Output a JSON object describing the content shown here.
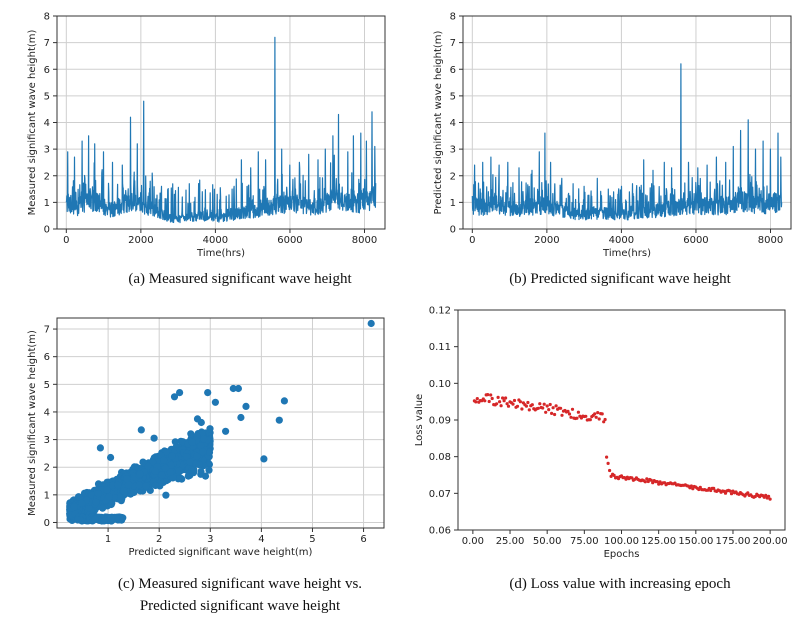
{
  "captions": {
    "a": "(a) Measured significant wave height",
    "b": "(b) Predicted significant wave height",
    "c_line1": "(c) Measured significant wave height vs.",
    "c_line2": "Predicted significant wave height",
    "d": "(d) Loss value with increasing epoch"
  },
  "colors": {
    "series": "#1f77b4",
    "loss": "#d62728",
    "grid": "#cfcfcf",
    "axis": "#333333"
  },
  "chart_data": [
    {
      "id": "a",
      "type": "line",
      "title": "",
      "xlabel": "Time(hrs)",
      "ylabel": "Measured significant wave height(m)",
      "xlim": [
        -250,
        8550
      ],
      "ylim": [
        0,
        8
      ],
      "xticks": [
        0,
        2000,
        4000,
        6000,
        8000
      ],
      "yticks": [
        0,
        1,
        2,
        3,
        4,
        5,
        6,
        7,
        8
      ],
      "grid": true,
      "base": [
        [
          0,
          1.1
        ],
        [
          300,
          0.9
        ],
        [
          600,
          1.3
        ],
        [
          900,
          1.0
        ],
        [
          1200,
          0.8
        ],
        [
          1500,
          1.0
        ],
        [
          1800,
          1.2
        ],
        [
          2100,
          1.0
        ],
        [
          2400,
          0.7
        ],
        [
          2700,
          0.5
        ],
        [
          3000,
          0.4
        ],
        [
          3300,
          0.5
        ],
        [
          3600,
          0.55
        ],
        [
          3900,
          0.5
        ],
        [
          4200,
          0.45
        ],
        [
          4500,
          0.6
        ],
        [
          4800,
          0.7
        ],
        [
          5100,
          0.75
        ],
        [
          5400,
          0.9
        ],
        [
          5700,
          1.0
        ],
        [
          6000,
          1.1
        ],
        [
          6300,
          1.0
        ],
        [
          6600,
          0.9
        ],
        [
          6900,
          1.0
        ],
        [
          7200,
          1.3
        ],
        [
          7500,
          1.1
        ],
        [
          7800,
          1.0
        ],
        [
          8100,
          1.2
        ],
        [
          8300,
          1.4
        ]
      ],
      "spikes": [
        [
          40,
          2.9
        ],
        [
          220,
          2.7
        ],
        [
          420,
          3.3
        ],
        [
          600,
          3.5
        ],
        [
          760,
          3.2
        ],
        [
          1000,
          2.9
        ],
        [
          1240,
          2.5
        ],
        [
          1500,
          2.4
        ],
        [
          1720,
          4.2
        ],
        [
          1900,
          3.2
        ],
        [
          2080,
          4.8
        ],
        [
          2300,
          2.1
        ],
        [
          2550,
          1.6
        ],
        [
          2900,
          1.3
        ],
        [
          3300,
          1.7
        ],
        [
          3650,
          1.4
        ],
        [
          4050,
          1.3
        ],
        [
          4450,
          1.5
        ],
        [
          4700,
          2.6
        ],
        [
          4950,
          2.3
        ],
        [
          5150,
          2.9
        ],
        [
          5350,
          2.6
        ],
        [
          5600,
          7.2
        ],
        [
          5780,
          3.0
        ],
        [
          6000,
          2.4
        ],
        [
          6250,
          2.5
        ],
        [
          6500,
          2.8
        ],
        [
          6750,
          2.6
        ],
        [
          6950,
          3.0
        ],
        [
          7150,
          3.5
        ],
        [
          7300,
          4.3
        ],
        [
          7550,
          2.9
        ],
        [
          7700,
          3.5
        ],
        [
          7900,
          3.6
        ],
        [
          8050,
          3.3
        ],
        [
          8200,
          4.4
        ],
        [
          8280,
          3.1
        ]
      ],
      "n": 1100,
      "jitter": 0.55,
      "seed": 11
    },
    {
      "id": "b",
      "type": "line",
      "title": "",
      "xlabel": "Time(hrs)",
      "ylabel": "Predicted significant wave height(m)",
      "xlim": [
        -250,
        8550
      ],
      "ylim": [
        0,
        8
      ],
      "xticks": [
        0,
        2000,
        4000,
        6000,
        8000
      ],
      "yticks": [
        0,
        1,
        2,
        3,
        4,
        5,
        6,
        7,
        8
      ],
      "grid": true,
      "base": [
        [
          0,
          1.0
        ],
        [
          300,
          0.9
        ],
        [
          600,
          1.1
        ],
        [
          900,
          0.9
        ],
        [
          1200,
          0.8
        ],
        [
          1500,
          0.9
        ],
        [
          1800,
          1.0
        ],
        [
          2100,
          0.9
        ],
        [
          2400,
          0.75
        ],
        [
          2700,
          0.65
        ],
        [
          3000,
          0.6
        ],
        [
          3300,
          0.65
        ],
        [
          3600,
          0.65
        ],
        [
          3900,
          0.6
        ],
        [
          4200,
          0.6
        ],
        [
          4500,
          0.7
        ],
        [
          4800,
          0.75
        ],
        [
          5100,
          0.8
        ],
        [
          5400,
          0.9
        ],
        [
          5700,
          0.95
        ],
        [
          6000,
          1.0
        ],
        [
          6300,
          0.95
        ],
        [
          6600,
          0.9
        ],
        [
          6900,
          1.0
        ],
        [
          7200,
          1.2
        ],
        [
          7500,
          1.05
        ],
        [
          7800,
          1.0
        ],
        [
          8100,
          1.1
        ],
        [
          8300,
          1.2
        ]
      ],
      "spikes": [
        [
          60,
          2.4
        ],
        [
          280,
          2.5
        ],
        [
          500,
          2.7
        ],
        [
          720,
          2.4
        ],
        [
          950,
          2.5
        ],
        [
          1250,
          2.3
        ],
        [
          1600,
          2.2
        ],
        [
          1800,
          2.9
        ],
        [
          1950,
          3.6
        ],
        [
          2100,
          2.5
        ],
        [
          2400,
          1.9
        ],
        [
          2700,
          1.7
        ],
        [
          3000,
          1.6
        ],
        [
          3350,
          1.9
        ],
        [
          3650,
          1.5
        ],
        [
          4000,
          1.6
        ],
        [
          4300,
          1.7
        ],
        [
          4600,
          2.6
        ],
        [
          4850,
          2.2
        ],
        [
          5150,
          2.5
        ],
        [
          5350,
          2.3
        ],
        [
          5600,
          6.2
        ],
        [
          5800,
          2.5
        ],
        [
          6050,
          2.3
        ],
        [
          6300,
          2.4
        ],
        [
          6550,
          2.7
        ],
        [
          6800,
          2.5
        ],
        [
          7000,
          3.1
        ],
        [
          7200,
          3.7
        ],
        [
          7400,
          4.1
        ],
        [
          7600,
          3.0
        ],
        [
          7800,
          3.3
        ],
        [
          8000,
          3.0
        ],
        [
          8200,
          3.6
        ],
        [
          8280,
          2.7
        ]
      ],
      "n": 1100,
      "jitter": 0.45,
      "seed": 23
    },
    {
      "id": "c",
      "type": "scatter",
      "title": "",
      "xlabel": "Predicted significant wave height(m)",
      "ylabel": "Measured significant wave height(m)",
      "xlim": [
        0,
        6.4
      ],
      "ylim": [
        -0.2,
        7.4
      ],
      "xticks": [
        1,
        2,
        3,
        4,
        5,
        6
      ],
      "yticks": [
        0,
        1,
        2,
        3,
        4,
        5,
        6,
        7
      ],
      "grid": true,
      "outliers": [
        [
          6.15,
          7.2
        ],
        [
          4.45,
          4.4
        ],
        [
          4.35,
          3.7
        ],
        [
          4.05,
          2.3
        ],
        [
          3.55,
          4.85
        ],
        [
          3.45,
          4.85
        ],
        [
          3.7,
          4.2
        ],
        [
          2.4,
          4.7
        ],
        [
          2.95,
          4.7
        ],
        [
          2.3,
          4.55
        ],
        [
          0.85,
          2.7
        ],
        [
          1.65,
          3.35
        ],
        [
          3.3,
          3.3
        ],
        [
          3.6,
          3.8
        ],
        [
          1.05,
          2.35
        ],
        [
          2.75,
          3.75
        ],
        [
          3.1,
          4.35
        ],
        [
          1.9,
          3.05
        ]
      ],
      "n": 1800,
      "seed": 37
    },
    {
      "id": "d",
      "type": "scatter",
      "title": "",
      "xlabel": "Epochs",
      "ylabel": "Loss value",
      "xlim": [
        -10,
        210
      ],
      "ylim": [
        0.06,
        0.12
      ],
      "xticks": [
        0,
        25,
        50,
        75,
        100,
        125,
        150,
        175,
        200
      ],
      "yticks": [
        0.06,
        0.07,
        0.08,
        0.09,
        0.1,
        0.11,
        0.12
      ],
      "grid": false,
      "segments": [
        {
          "from": 1,
          "to": 89,
          "start": 0.0962,
          "end": 0.0905,
          "noise": 0.0014
        },
        {
          "from": 90,
          "to": 92,
          "start": 0.0795,
          "end": 0.0765,
          "noise": 0.0004
        },
        {
          "from": 93,
          "to": 200,
          "start": 0.0748,
          "end": 0.0688,
          "noise": 0.0005
        }
      ],
      "seed": 51
    }
  ]
}
